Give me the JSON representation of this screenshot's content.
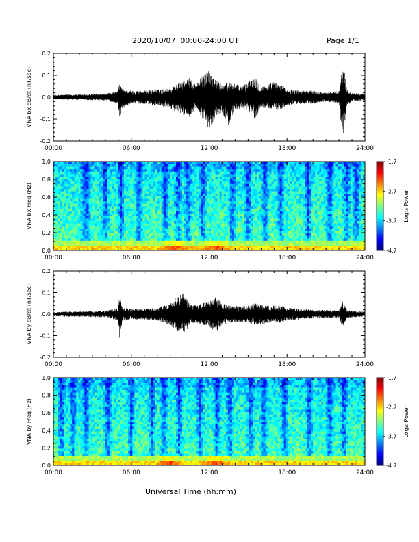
{
  "header": {
    "title": "2020/10/07  00:00-24:00 UT",
    "page": "Page 1/1"
  },
  "xlabel": "Universal Time (hh:mm)",
  "chart_data": [
    {
      "type": "line",
      "ylabel": "VNA bx dB/dt (nT/sec)",
      "xlim": [
        0,
        24
      ],
      "ylim": [
        -0.2,
        0.2
      ],
      "xticks": [
        "00:00",
        "06:00",
        "12:00",
        "18:00",
        "24:00"
      ],
      "yticks": [
        "-0.2",
        "-0.1",
        "0.0",
        "0.1",
        "0.2"
      ],
      "envelope": {
        "x": [
          0,
          1,
          2,
          3,
          4,
          5,
          5.1,
          5.3,
          6,
          7,
          8,
          9,
          9.5,
          10,
          10.5,
          11,
          11.5,
          12,
          12.5,
          13,
          13.5,
          14,
          14.5,
          15,
          15.5,
          16,
          16.5,
          17,
          17.5,
          18,
          19,
          20,
          21,
          22,
          22.3,
          22.6,
          23,
          24
        ],
        "max": [
          0.01,
          0.012,
          0.012,
          0.015,
          0.015,
          0.03,
          0.07,
          0.04,
          0.03,
          0.03,
          0.035,
          0.04,
          0.06,
          0.07,
          0.09,
          0.06,
          0.1,
          0.13,
          0.08,
          0.06,
          0.07,
          0.06,
          0.05,
          0.07,
          0.1,
          0.05,
          0.06,
          0.07,
          0.06,
          0.04,
          0.03,
          0.03,
          0.02,
          0.03,
          0.17,
          0.04,
          0.02,
          0.015
        ],
        "min": [
          -0.01,
          -0.012,
          -0.012,
          -0.015,
          -0.015,
          -0.03,
          -0.11,
          -0.05,
          -0.03,
          -0.03,
          -0.04,
          -0.05,
          -0.07,
          -0.08,
          -0.09,
          -0.06,
          -0.1,
          -0.15,
          -0.09,
          -0.07,
          -0.13,
          -0.06,
          -0.05,
          -0.06,
          -0.1,
          -0.05,
          -0.05,
          -0.06,
          -0.06,
          -0.04,
          -0.03,
          -0.03,
          -0.02,
          -0.03,
          -0.2,
          -0.04,
          -0.02,
          -0.015
        ]
      }
    },
    {
      "type": "heatmap",
      "ylabel": "VNA bx Freq (Hz)",
      "colorbar_label": "Log₁₀ Power",
      "colorbar_ticks": [
        "-1.7",
        "-2.7",
        "-3.7",
        "-4.7"
      ],
      "clim": [
        -4.7,
        -1.7
      ],
      "xlim": [
        0,
        24
      ],
      "ylim": [
        0,
        1.0
      ],
      "xticks": [
        "00:00",
        "06:00",
        "12:00",
        "18:00",
        "24:00"
      ],
      "yticks": [
        "0.0",
        "0.2",
        "0.4",
        "0.6",
        "0.8",
        "1.0"
      ],
      "dark_bands_hours": [
        2.4,
        2.6,
        4.0,
        5.2,
        6.6,
        8.6,
        9.6,
        10.4,
        11.5,
        13.8,
        15.0,
        16.3,
        17.5,
        19.6,
        21.3,
        22.6,
        23.3
      ],
      "low_freq_peak_hours": [
        9.5,
        12.5
      ]
    },
    {
      "type": "line",
      "ylabel": "VNA by dB/dt (nT/sec)",
      "xlim": [
        0,
        24
      ],
      "ylim": [
        -0.2,
        0.2
      ],
      "xticks": [
        "00:00",
        "06:00",
        "12:00",
        "18:00",
        "24:00"
      ],
      "yticks": [
        "-0.2",
        "-0.1",
        "0.0",
        "0.1",
        "0.2"
      ],
      "envelope": {
        "x": [
          0,
          1,
          2,
          3,
          4,
          5,
          5.1,
          5.3,
          6,
          7,
          8,
          9,
          9.5,
          10,
          10.5,
          11,
          11.5,
          12,
          12.5,
          13,
          13.5,
          14,
          14.5,
          15,
          15.5,
          16,
          16.5,
          17,
          17.5,
          18,
          19,
          20,
          21,
          22,
          22.3,
          22.6,
          23,
          24
        ],
        "max": [
          0.01,
          0.012,
          0.012,
          0.015,
          0.015,
          0.03,
          0.09,
          0.03,
          0.025,
          0.025,
          0.03,
          0.05,
          0.08,
          0.1,
          0.05,
          0.04,
          0.05,
          0.06,
          0.08,
          0.05,
          0.04,
          0.04,
          0.04,
          0.04,
          0.05,
          0.05,
          0.04,
          0.04,
          0.04,
          0.03,
          0.025,
          0.02,
          0.02,
          0.02,
          0.06,
          0.02,
          0.015,
          0.012
        ],
        "min": [
          -0.01,
          -0.012,
          -0.012,
          -0.015,
          -0.015,
          -0.03,
          -0.13,
          -0.03,
          -0.025,
          -0.025,
          -0.03,
          -0.05,
          -0.08,
          -0.1,
          -0.05,
          -0.04,
          -0.05,
          -0.06,
          -0.09,
          -0.05,
          -0.04,
          -0.04,
          -0.04,
          -0.04,
          -0.05,
          -0.05,
          -0.04,
          -0.04,
          -0.04,
          -0.03,
          -0.025,
          -0.02,
          -0.02,
          -0.02,
          -0.06,
          -0.02,
          -0.015,
          -0.012
        ]
      }
    },
    {
      "type": "heatmap",
      "ylabel": "VNA by Freq (Hz)",
      "colorbar_label": "Log₁₀ Power",
      "colorbar_ticks": [
        "-1.7",
        "-2.7",
        "-3.7",
        "-4.7"
      ],
      "clim": [
        -4.7,
        -1.7
      ],
      "xlim": [
        0,
        24
      ],
      "ylim": [
        0,
        1.0
      ],
      "xticks": [
        "00:00",
        "06:00",
        "12:00",
        "18:00",
        "24:00"
      ],
      "yticks": [
        "0.0",
        "0.2",
        "0.4",
        "0.6",
        "0.8",
        "1.0"
      ],
      "dark_bands_hours": [
        0.6,
        1.5,
        2.5,
        4.2,
        6.0,
        7.6,
        8.5,
        9.7,
        11.3,
        12.6,
        13.6,
        15.2,
        16.2,
        17.8,
        19.7,
        21.3,
        22.4
      ],
      "low_freq_peak_hours": [
        9.0,
        12.5
      ]
    }
  ]
}
